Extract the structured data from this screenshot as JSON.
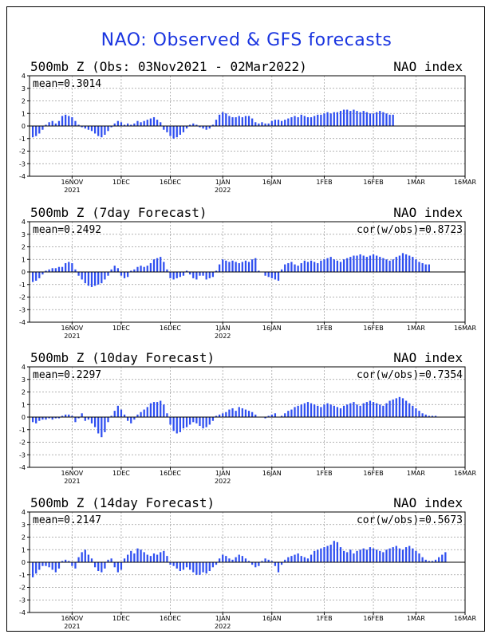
{
  "main_title": "NAO: Observed & GFS forecasts",
  "colors": {
    "bar": "#2f4ff0",
    "title": "#1a35e0",
    "grid": "#9a9a9a"
  },
  "shared_axes": {
    "y_ticks": [
      "4",
      "3",
      "2",
      "1",
      "0",
      "-1",
      "-2",
      "-3",
      "-4"
    ],
    "ylim": [
      -4,
      4
    ],
    "x_ticks": [
      {
        "day": 13,
        "label": "16NOV",
        "sub": "2021"
      },
      {
        "day": 28,
        "label": "1DEC",
        "sub": ""
      },
      {
        "day": 43,
        "label": "16DEC",
        "sub": ""
      },
      {
        "day": 59,
        "label": "1JAN",
        "sub": "2022"
      },
      {
        "day": 74,
        "label": "16JAN",
        "sub": ""
      },
      {
        "day": 90,
        "label": "1FEB",
        "sub": ""
      },
      {
        "day": 105,
        "label": "16FEB",
        "sub": ""
      },
      {
        "day": 118,
        "label": "1MAR",
        "sub": ""
      },
      {
        "day": 133,
        "label": "16MAR",
        "sub": ""
      }
    ]
  },
  "chart_data": [
    {
      "type": "bar",
      "title": "500mb Z (Obs: 03Nov2021 - 02Mar2022)",
      "right_title": "NAO index",
      "mean_label": "mean=0.3014",
      "cor_label": "",
      "values": [
        -0.9,
        -0.8,
        -0.6,
        -0.3,
        0.1,
        0.3,
        0.4,
        0.2,
        0.4,
        0.8,
        0.9,
        0.8,
        0.7,
        0.4,
        0.1,
        -0.1,
        -0.2,
        -0.3,
        -0.4,
        -0.6,
        -0.8,
        -0.9,
        -0.7,
        -0.4,
        -0.1,
        0.2,
        0.4,
        0.3,
        0.1,
        0.2,
        0.1,
        0.2,
        0.4,
        0.3,
        0.4,
        0.5,
        0.6,
        0.7,
        0.5,
        0.3,
        -0.3,
        -0.5,
        -0.8,
        -1.0,
        -0.9,
        -0.7,
        -0.5,
        -0.2,
        0.1,
        0.2,
        0.1,
        -0.1,
        -0.2,
        -0.3,
        -0.2,
        0.1,
        0.5,
        0.9,
        1.1,
        1.0,
        0.8,
        0.7,
        0.7,
        0.8,
        0.7,
        0.8,
        0.8,
        0.6,
        0.3,
        0.2,
        0.3,
        0.2,
        0.2,
        0.4,
        0.5,
        0.5,
        0.4,
        0.5,
        0.6,
        0.7,
        0.8,
        0.7,
        0.9,
        0.8,
        0.7,
        0.7,
        0.8,
        0.9,
        0.9,
        1.0,
        1.1,
        1.0,
        1.1,
        1.1,
        1.2,
        1.3,
        1.3,
        1.2,
        1.3,
        1.2,
        1.1,
        1.2,
        1.1,
        1.0,
        1.0,
        1.1,
        1.2,
        1.1,
        1.0,
        0.9,
        0.9
      ],
      "ylim": [
        -4,
        4
      ]
    },
    {
      "type": "bar",
      "title": "500mb Z (7day Forecast)",
      "right_title": "NAO index",
      "mean_label": "mean=0.2492",
      "cor_label": "cor(w/obs)=0.8723",
      "values": [
        -0.8,
        -0.7,
        -0.5,
        -0.2,
        0.1,
        0.2,
        0.3,
        0.3,
        0.4,
        0.4,
        0.7,
        0.8,
        0.7,
        0.2,
        -0.3,
        -0.6,
        -0.9,
        -1.1,
        -1.2,
        -1.1,
        -1.0,
        -0.9,
        -0.6,
        -0.3,
        0.2,
        0.5,
        0.3,
        -0.3,
        -0.5,
        -0.4,
        0.1,
        0.2,
        0.4,
        0.5,
        0.4,
        0.5,
        0.7,
        1.0,
        1.1,
        1.2,
        0.8,
        0.2,
        -0.5,
        -0.6,
        -0.5,
        -0.4,
        -0.3,
        0.1,
        -0.2,
        -0.5,
        -0.6,
        -0.3,
        -0.3,
        -0.6,
        -0.5,
        -0.4,
        0.1,
        0.6,
        1.0,
        0.9,
        0.8,
        0.9,
        0.8,
        0.7,
        0.8,
        0.9,
        0.8,
        1.0,
        1.1,
        0.1,
        0.0,
        -0.3,
        -0.4,
        -0.5,
        -0.6,
        -0.7,
        0.2,
        0.6,
        0.7,
        0.8,
        0.6,
        0.5,
        0.7,
        0.9,
        0.8,
        0.9,
        0.8,
        0.7,
        0.9,
        1.0,
        1.1,
        1.2,
        1.0,
        0.9,
        0.8,
        1.0,
        1.1,
        1.2,
        1.3,
        1.3,
        1.4,
        1.3,
        1.2,
        1.3,
        1.4,
        1.3,
        1.2,
        1.1,
        1.0,
        0.9,
        1.0,
        1.2,
        1.3,
        1.5,
        1.4,
        1.3,
        1.2,
        1.0,
        0.8,
        0.7,
        0.6,
        0.6
      ]
    },
    {
      "type": "bar",
      "title": "500mb Z (10day Forecast)",
      "right_title": "NAO index",
      "mean_label": "mean=0.2297",
      "cor_label": "cor(w/obs)=0.7354",
      "values": [
        -0.4,
        -0.5,
        -0.3,
        -0.2,
        -0.2,
        -0.1,
        -0.2,
        -0.1,
        -0.1,
        0.1,
        0.2,
        0.2,
        0.1,
        -0.4,
        -0.1,
        0.3,
        -0.3,
        -0.2,
        -0.5,
        -0.8,
        -1.3,
        -1.6,
        -1.2,
        -0.4,
        0.1,
        0.5,
        0.9,
        0.6,
        0.2,
        -0.3,
        -0.5,
        -0.2,
        0.2,
        0.4,
        0.6,
        0.8,
        1.1,
        1.2,
        1.2,
        1.3,
        1.0,
        0.3,
        -0.6,
        -1.1,
        -1.3,
        -1.2,
        -0.9,
        -0.8,
        -0.6,
        -0.4,
        -0.5,
        -0.7,
        -0.9,
        -0.8,
        -0.6,
        -0.3,
        0.1,
        0.2,
        0.3,
        0.4,
        0.6,
        0.7,
        0.5,
        0.8,
        0.7,
        0.6,
        0.5,
        0.4,
        0.2,
        0.0,
        0.0,
        -0.1,
        0.1,
        0.2,
        0.3,
        0.0,
        0.1,
        0.3,
        0.5,
        0.6,
        0.8,
        0.9,
        1.0,
        1.1,
        1.2,
        1.1,
        1.0,
        0.9,
        0.8,
        1.0,
        1.1,
        1.0,
        0.9,
        0.8,
        0.7,
        0.9,
        1.0,
        1.1,
        1.2,
        1.0,
        0.9,
        1.1,
        1.2,
        1.3,
        1.2,
        1.1,
        1.0,
        0.9,
        1.1,
        1.3,
        1.4,
        1.5,
        1.6,
        1.5,
        1.3,
        1.1,
        0.9,
        0.7,
        0.5,
        0.3,
        0.2,
        0.1,
        0.1,
        0.1
      ]
    },
    {
      "type": "bar",
      "title": "500mb Z (14day Forecast)",
      "right_title": "NAO index",
      "mean_label": "mean=0.2147",
      "cor_label": "cor(w/obs)=0.5673",
      "values": [
        -1.2,
        -0.9,
        -0.6,
        -0.3,
        -0.3,
        -0.4,
        -0.6,
        -0.8,
        -0.5,
        0.1,
        0.2,
        0.1,
        -0.3,
        -0.5,
        0.4,
        0.8,
        1.0,
        0.6,
        0.3,
        -0.4,
        -0.7,
        -0.8,
        -0.5,
        0.2,
        0.3,
        -0.4,
        -0.8,
        -0.6,
        0.3,
        0.6,
        0.9,
        0.7,
        1.1,
        1.0,
        0.8,
        0.6,
        0.5,
        0.7,
        0.6,
        0.8,
        0.9,
        0.5,
        -0.2,
        -0.3,
        -0.5,
        -0.7,
        -0.6,
        -0.4,
        -0.6,
        -0.8,
        -1.0,
        -1.0,
        -0.8,
        -0.9,
        -0.7,
        -0.4,
        -0.2,
        0.3,
        0.6,
        0.5,
        0.3,
        0.2,
        0.4,
        0.6,
        0.5,
        0.3,
        0.1,
        -0.2,
        -0.4,
        -0.3,
        0.1,
        0.3,
        0.2,
        0.1,
        -0.3,
        -0.8,
        -0.2,
        0.2,
        0.4,
        0.5,
        0.6,
        0.7,
        0.5,
        0.4,
        0.3,
        0.6,
        0.9,
        1.0,
        1.1,
        1.2,
        1.3,
        1.4,
        1.7,
        1.6,
        1.2,
        0.9,
        0.8,
        1.0,
        0.7,
        0.9,
        1.0,
        1.1,
        1.0,
        1.2,
        1.1,
        1.0,
        0.9,
        0.8,
        1.0,
        1.1,
        1.2,
        1.3,
        1.1,
        1.0,
        1.2,
        1.3,
        1.1,
        0.9,
        0.7,
        0.4,
        0.2,
        0.1,
        0.1,
        0.2,
        0.4,
        0.6,
        0.8
      ]
    }
  ]
}
